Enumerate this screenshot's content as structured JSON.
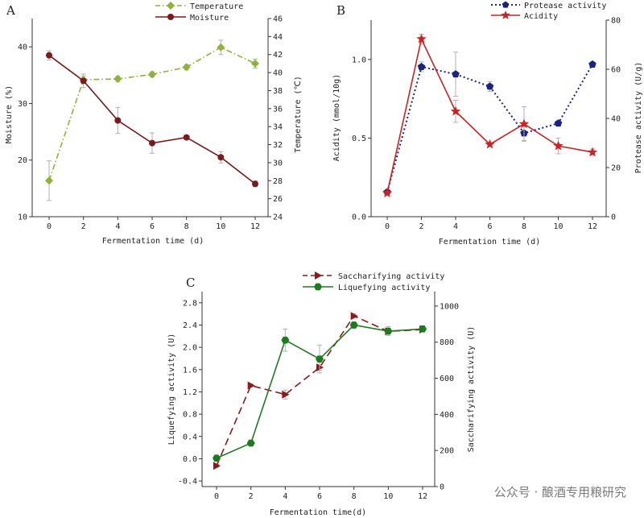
{
  "watermark": "公众号 · 酿酒专用粮研究",
  "chart_data": [
    {
      "panel": "A",
      "type": "line",
      "xlabel": "Fermentation time (d)",
      "x": [
        0,
        2,
        4,
        6,
        8,
        10,
        12
      ],
      "xticks": [
        "0",
        "2",
        "4",
        "6",
        "8",
        "10",
        "12"
      ],
      "left_axis": {
        "label": "Moisture (%)",
        "range": [
          10,
          45
        ],
        "ticks": [
          "10",
          "20",
          "30",
          "40"
        ]
      },
      "right_axis": {
        "label": "Temperature (℃)",
        "range": [
          24,
          46
        ],
        "ticks": [
          "24",
          "26",
          "28",
          "30",
          "32",
          "34",
          "36",
          "38",
          "40",
          "42",
          "44",
          "46"
        ]
      },
      "legend_position": "top-center",
      "series": [
        {
          "name": "Temperature",
          "axis": "right",
          "color": "#8db33a",
          "style": "dash-dot",
          "marker": "diamond",
          "values": [
            28.0,
            39.2,
            39.3,
            39.8,
            40.6,
            42.8,
            41.0
          ],
          "errors": [
            2.2,
            0.4,
            0.3,
            0.3,
            0.3,
            0.8,
            0.5
          ]
        },
        {
          "name": "Moisture",
          "axis": "left",
          "color": "#7a1a1a",
          "style": "solid",
          "marker": "circle",
          "values": [
            38.5,
            34.0,
            27.0,
            23.0,
            24.0,
            20.5,
            15.8
          ],
          "errors": [
            0.8,
            1.2,
            2.3,
            1.8,
            0.4,
            1.0,
            0.5
          ]
        }
      ]
    },
    {
      "panel": "B",
      "type": "line",
      "xlabel": "Fermentation time (d)",
      "x": [
        0,
        2,
        4,
        6,
        8,
        10,
        12
      ],
      "xticks": [
        "0",
        "2",
        "4",
        "6",
        "8",
        "10",
        "12"
      ],
      "left_axis": {
        "label": "Acidity (mmol/10g)",
        "range": [
          0,
          1.25
        ],
        "ticks": [
          "0.0",
          "0.5",
          "1.0"
        ],
        "tick_values": [
          0,
          0.5,
          1.0
        ]
      },
      "right_axis": {
        "label": "Protease activity (U/g)",
        "range": [
          0,
          80
        ],
        "ticks": [
          "0",
          "20",
          "40",
          "60",
          "80"
        ]
      },
      "legend_position": "top-center",
      "series": [
        {
          "name": "Protease activity",
          "axis": "right",
          "color": "#1a237e",
          "style": "dotted",
          "marker": "pentagon",
          "values": [
            10,
            61,
            58,
            53,
            34,
            38,
            62
          ],
          "errors": [
            1,
            2,
            9,
            2,
            3,
            1,
            1
          ]
        },
        {
          "name": "Acidity",
          "axis": "left",
          "color": "#cc2222",
          "style": "solid",
          "marker": "star",
          "values": [
            0.15,
            1.13,
            0.67,
            0.46,
            0.59,
            0.45,
            0.41
          ],
          "errors": [
            0.01,
            0.03,
            0.07,
            0.01,
            0.11,
            0.05,
            0.02
          ]
        }
      ]
    },
    {
      "panel": "C",
      "type": "line",
      "xlabel": "Fermentation time(d)",
      "x": [
        0,
        2,
        4,
        6,
        8,
        10,
        12
      ],
      "xticks": [
        "0",
        "2",
        "4",
        "6",
        "8",
        "10",
        "12"
      ],
      "left_axis": {
        "label": "Liquefying activity (U)",
        "range": [
          -0.5,
          3.0
        ],
        "ticks": [
          "-0.4",
          "0.0",
          "0.4",
          "0.8",
          "1.2",
          "1.6",
          "2.0",
          "2.4",
          "2.8"
        ],
        "tick_values": [
          -0.4,
          0.0,
          0.4,
          0.8,
          1.2,
          1.6,
          2.0,
          2.4,
          2.8
        ]
      },
      "right_axis": {
        "label": "Saccharifying activity (U)",
        "range": [
          0,
          1080
        ],
        "ticks": [
          "0",
          "200",
          "400",
          "600",
          "800",
          "1000"
        ]
      },
      "legend_position": "top-center",
      "series": [
        {
          "name": "Saccharifying activity",
          "axis": "right",
          "color": "#8b1a1a",
          "style": "dashed",
          "marker": "triangle-right",
          "values": [
            115,
            560,
            510,
            660,
            945,
            860,
            870
          ],
          "errors": [
            8,
            10,
            25,
            15,
            12,
            10,
            10
          ]
        },
        {
          "name": "Liquefying activity",
          "axis": "left",
          "color": "#1e7a1e",
          "style": "solid",
          "marker": "hexagon",
          "values": [
            0.01,
            0.28,
            2.13,
            1.79,
            2.4,
            2.29,
            2.33
          ],
          "errors": [
            0.02,
            0.02,
            0.2,
            0.25,
            0.05,
            0.08,
            0.05
          ]
        }
      ]
    }
  ]
}
